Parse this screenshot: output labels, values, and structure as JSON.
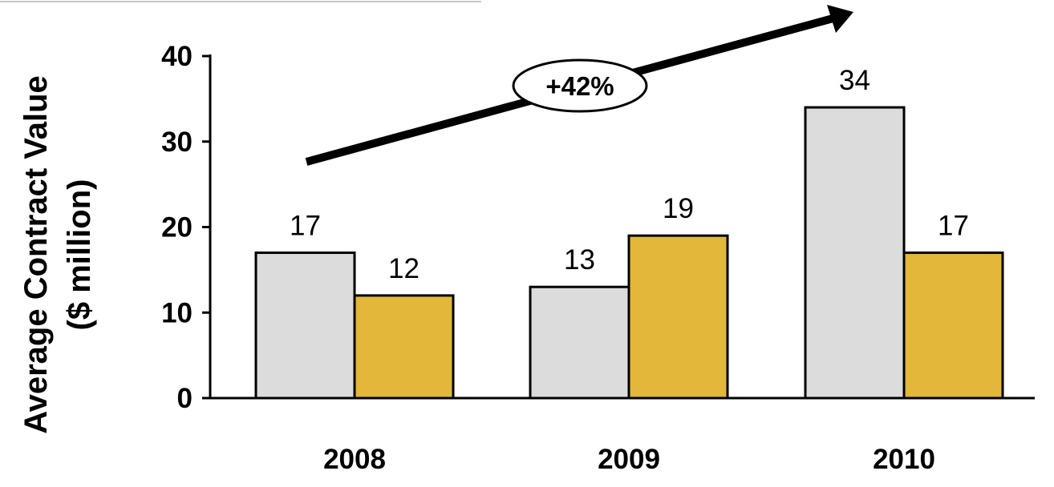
{
  "chart_data": {
    "type": "bar",
    "categories": [
      "2008",
      "2009",
      "2010"
    ],
    "series": [
      {
        "values": [
          17,
          13,
          34
        ],
        "color": "#dcdcdc"
      },
      {
        "values": [
          12,
          19,
          17
        ],
        "color": "#e2b73a"
      }
    ],
    "data_labels": [
      [
        "17",
        "13",
        "34"
      ],
      [
        "12",
        "19",
        "17"
      ]
    ],
    "ylabel_line1": "Average Contract Value",
    "ylabel_line2": "($ million)",
    "yticks": [
      "0",
      "10",
      "20",
      "30",
      "40"
    ],
    "ylim": [
      0,
      40
    ],
    "annotation": "+42%",
    "grid": false,
    "legend": "none"
  }
}
